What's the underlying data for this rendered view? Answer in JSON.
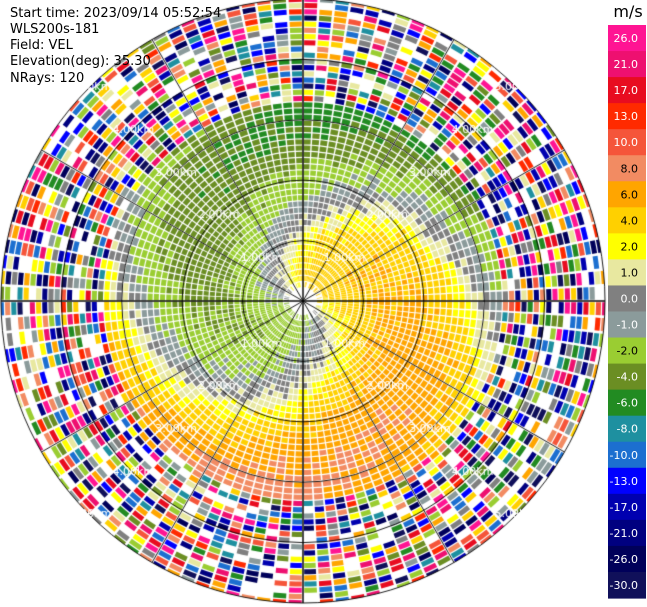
{
  "header": {
    "start_time": "Start time: 2023/09/14 05:52:54",
    "instrument": "WLS200s-181",
    "field": "Field: VEL",
    "elevation": "Elevation(deg): 35.30",
    "nrays": "NRays: 120"
  },
  "colorbar": {
    "unit": "m/s",
    "levels": [
      26.0,
      21.0,
      17.0,
      13.0,
      10.0,
      8.0,
      6.0,
      4.0,
      2.0,
      1.0,
      0.0,
      -1.0,
      -2.0,
      -4.0,
      -6.0,
      -8.0,
      -10.0,
      -13.0,
      -17.0,
      -21.0,
      -26.0,
      -30.0
    ],
    "tick_labels": [
      "26.0",
      "21.0",
      "17.0",
      "13.0",
      "10.0",
      "8.0",
      "6.0",
      "4.0",
      "2.0",
      "1.0",
      "0.0",
      "-1.0",
      "-2.0",
      "-4.0",
      "-6.0",
      "-8.0",
      "-10.0",
      "-13.0",
      "-17.0",
      "-21.0",
      "-26.0",
      "-30.0"
    ],
    "colors": [
      "#ff1493",
      "#ee1070",
      "#e80c20",
      "#ff2a00",
      "#f5553a",
      "#f28b62",
      "#ffa500",
      "#ffd000",
      "#ffff00",
      "#e8e8a0",
      "#808080",
      "#8b9b9b",
      "#9acd32",
      "#6b8e23",
      "#228b22",
      "#1e90a0",
      "#1c6fd0",
      "#0000ff",
      "#0000b0",
      "#000080",
      "#00005a",
      "#10105a"
    ]
  },
  "chart_data": {
    "type": "heatmap",
    "projection": "polar-ppi",
    "field": "VEL",
    "units": "m/s",
    "elevation_deg": 35.3,
    "nrays": 120,
    "range_rings_km": [
      1.0,
      2.0,
      3.0,
      4.0,
      5.0
    ],
    "ring_labels": [
      "1.00km",
      "2.00km",
      "3.00km",
      "4.00km",
      "5.00km"
    ],
    "spokes_deg": [
      0,
      30,
      60,
      90,
      120,
      150,
      180,
      210,
      240,
      270,
      300,
      330
    ],
    "max_range_km": 5.0,
    "vmin": -30.0,
    "vmax": 26.0,
    "clean_range_km": 3.3
  }
}
